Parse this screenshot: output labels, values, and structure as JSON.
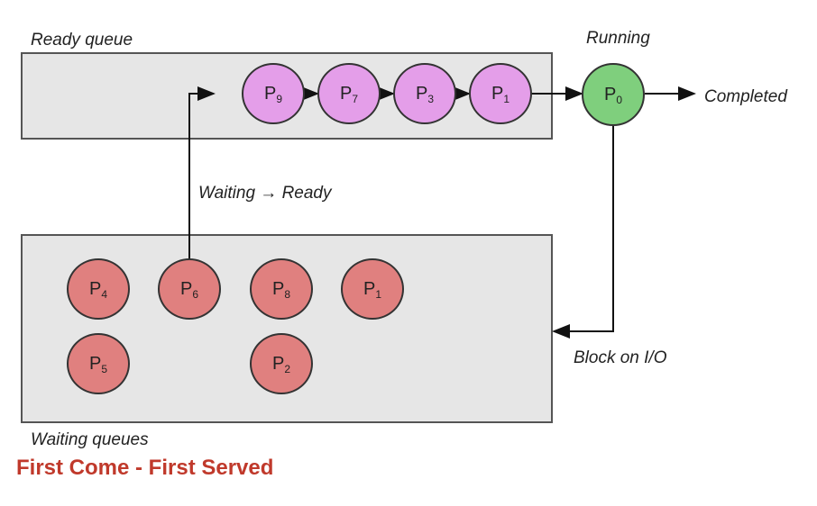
{
  "ready_queue": {
    "label": "Ready queue",
    "processes": [
      {
        "name": "P",
        "sub": "9"
      },
      {
        "name": "P",
        "sub": "7"
      },
      {
        "name": "P",
        "sub": "3"
      },
      {
        "name": "P",
        "sub": "1"
      }
    ]
  },
  "running": {
    "label": "Running",
    "process": {
      "name": "P",
      "sub": "0"
    }
  },
  "completed_label": "Completed",
  "waiting_to_ready_label": "Waiting → Ready",
  "block_label": "Block on I/O",
  "waiting_queues": {
    "label": "Waiting queues",
    "processes": [
      {
        "name": "P",
        "sub": "4"
      },
      {
        "name": "P",
        "sub": "6"
      },
      {
        "name": "P",
        "sub": "8"
      },
      {
        "name": "P",
        "sub": "1"
      },
      {
        "name": "P",
        "sub": "5"
      },
      {
        "name": "P",
        "sub": "2"
      }
    ]
  },
  "title": "First Come - First Served",
  "colors": {
    "ready": "#e49ee9",
    "running": "#7fcf7d",
    "waiting": "#e0807f",
    "title": "#c0392b"
  }
}
